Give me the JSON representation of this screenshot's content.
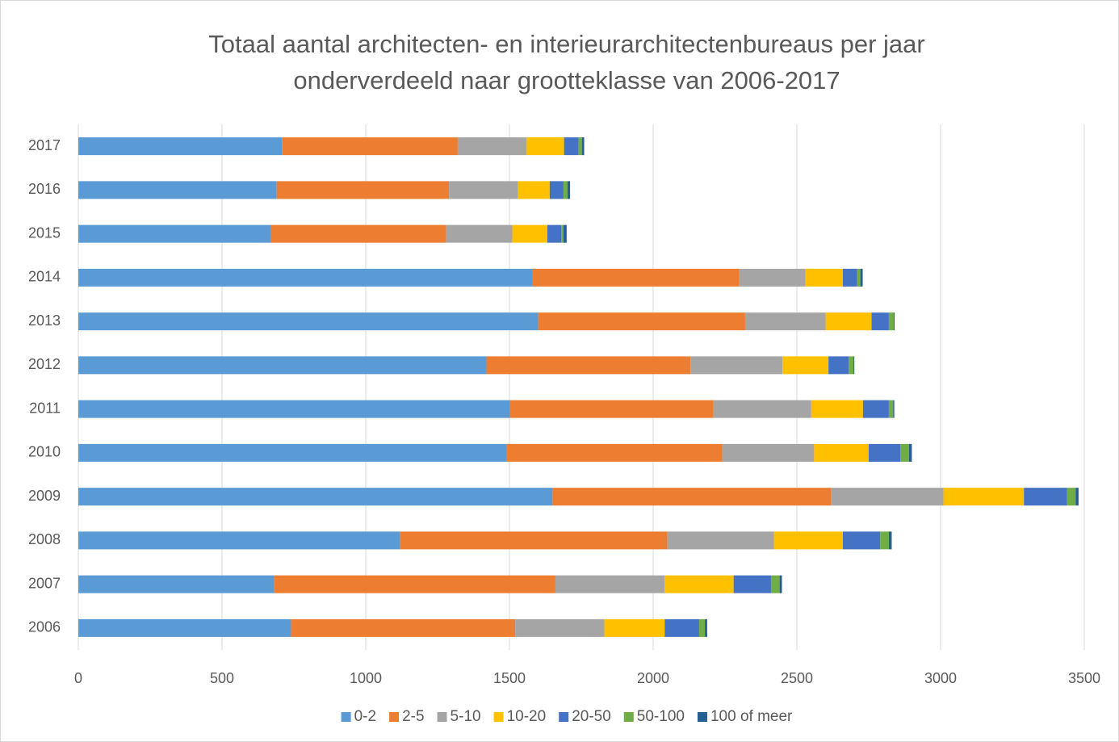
{
  "chart_data": {
    "type": "stacked-bar-horizontal",
    "title": [
      "Totaal aantal architecten- en interieurarchitectenbureaus per jaar",
      "onderverdeeld naar grootteklasse van 2006-2017"
    ],
    "categories": [
      "2017",
      "2016",
      "2015",
      "2014",
      "2013",
      "2012",
      "2011",
      "2010",
      "2009",
      "2008",
      "2007",
      "2006"
    ],
    "series": [
      {
        "name": "0-2",
        "color": "#5b9bd5",
        "values": [
          710,
          690,
          670,
          1580,
          1600,
          1420,
          1500,
          1490,
          1650,
          1120,
          680,
          740
        ]
      },
      {
        "name": "2-5",
        "color": "#ed7d31",
        "values": [
          610,
          600,
          610,
          720,
          720,
          710,
          710,
          750,
          970,
          930,
          980,
          780
        ]
      },
      {
        "name": "5-10",
        "color": "#a5a5a5",
        "values": [
          240,
          240,
          230,
          230,
          280,
          320,
          340,
          320,
          390,
          370,
          380,
          310
        ]
      },
      {
        "name": "10-20",
        "color": "#ffc000",
        "values": [
          130,
          110,
          122,
          130,
          160,
          160,
          180,
          190,
          280,
          240,
          240,
          210
        ]
      },
      {
        "name": "20-50",
        "color": "#4472c4",
        "values": [
          50,
          48,
          48,
          50,
          60,
          70,
          90,
          110,
          150,
          130,
          130,
          120
        ]
      },
      {
        "name": "50-100",
        "color": "#70ad47",
        "values": [
          12,
          14,
          8,
          11,
          17,
          17,
          15,
          30,
          30,
          30,
          30,
          20
        ]
      },
      {
        "name": "100 of meer",
        "color": "#255e91",
        "values": [
          8,
          9,
          11,
          8,
          3,
          3,
          4,
          10,
          10,
          10,
          8,
          8
        ]
      }
    ],
    "xlim": [
      0,
      3500
    ],
    "xticks": [
      0,
      500,
      1000,
      1500,
      2000,
      2500,
      3000,
      3500
    ],
    "grid": true,
    "legend": "bottom"
  }
}
